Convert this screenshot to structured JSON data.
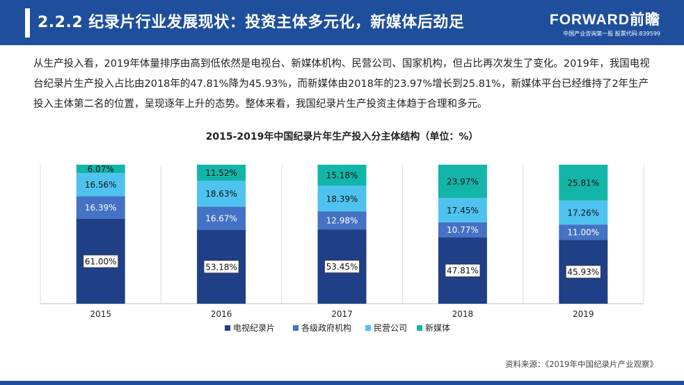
{
  "header": {
    "title": "2.2.2 纪录片行业发展现状：投资主体多元化，新媒体后劲足",
    "logo_brand": "FORWARD前瞻",
    "logo_sub": "中国产业咨询第一股 股票代码:839599"
  },
  "paragraph": "从生产投入看，2019年体量排序由高到低依然是电视台、新媒体机构、民营公司、国家机构，但占比再次发生了变化。2019年，我国电视台纪录片生产投入占比由2018年的47.81%降为45.93%，而新媒体由2018年的23.97%增长到25.81%，新媒体平台已经维持了2年生产投入主体第二名的位置，呈现逐年上升的态势。整体来看，我国纪录片生产投资主体趋于合理和多元。",
  "source": "资料来源：《2019年中国纪录片产业观察》",
  "chart_data": {
    "type": "bar",
    "stacked": true,
    "title": "2015-2019年中国纪录片年生产投入分主体结构（单位：%）",
    "categories": [
      "2015",
      "2016",
      "2017",
      "2018",
      "2019"
    ],
    "series": [
      {
        "name": "电视纪录片",
        "values": [
          61.0,
          53.18,
          53.45,
          47.81,
          45.93
        ],
        "color": "#1f3f86",
        "labels": [
          "61.00%",
          "53.18%",
          "53.45%",
          "47.81%",
          "45.93%"
        ]
      },
      {
        "name": "各级政府机构",
        "values": [
          16.39,
          16.67,
          12.98,
          10.77,
          11.0
        ],
        "color": "#4472c4",
        "labels": [
          "16.39%",
          "16.67%",
          "12.98%",
          "10.77%",
          "11.00%"
        ]
      },
      {
        "name": "民营公司",
        "values": [
          16.56,
          18.63,
          18.39,
          17.45,
          17.26
        ],
        "color": "#4fc3f0",
        "labels": [
          "16.56%",
          "18.63%",
          "18.39%",
          "17.45%",
          "17.26%"
        ]
      },
      {
        "name": "新媒体",
        "values": [
          6.07,
          11.52,
          15.18,
          23.97,
          25.81
        ],
        "color": "#13b5a9",
        "labels": [
          "6.07%",
          "11.52%",
          "15.18%",
          "23.97%",
          "25.81%"
        ]
      }
    ],
    "ylim": [
      0,
      100
    ],
    "legend_position": "bottom",
    "grid": "vertical"
  }
}
